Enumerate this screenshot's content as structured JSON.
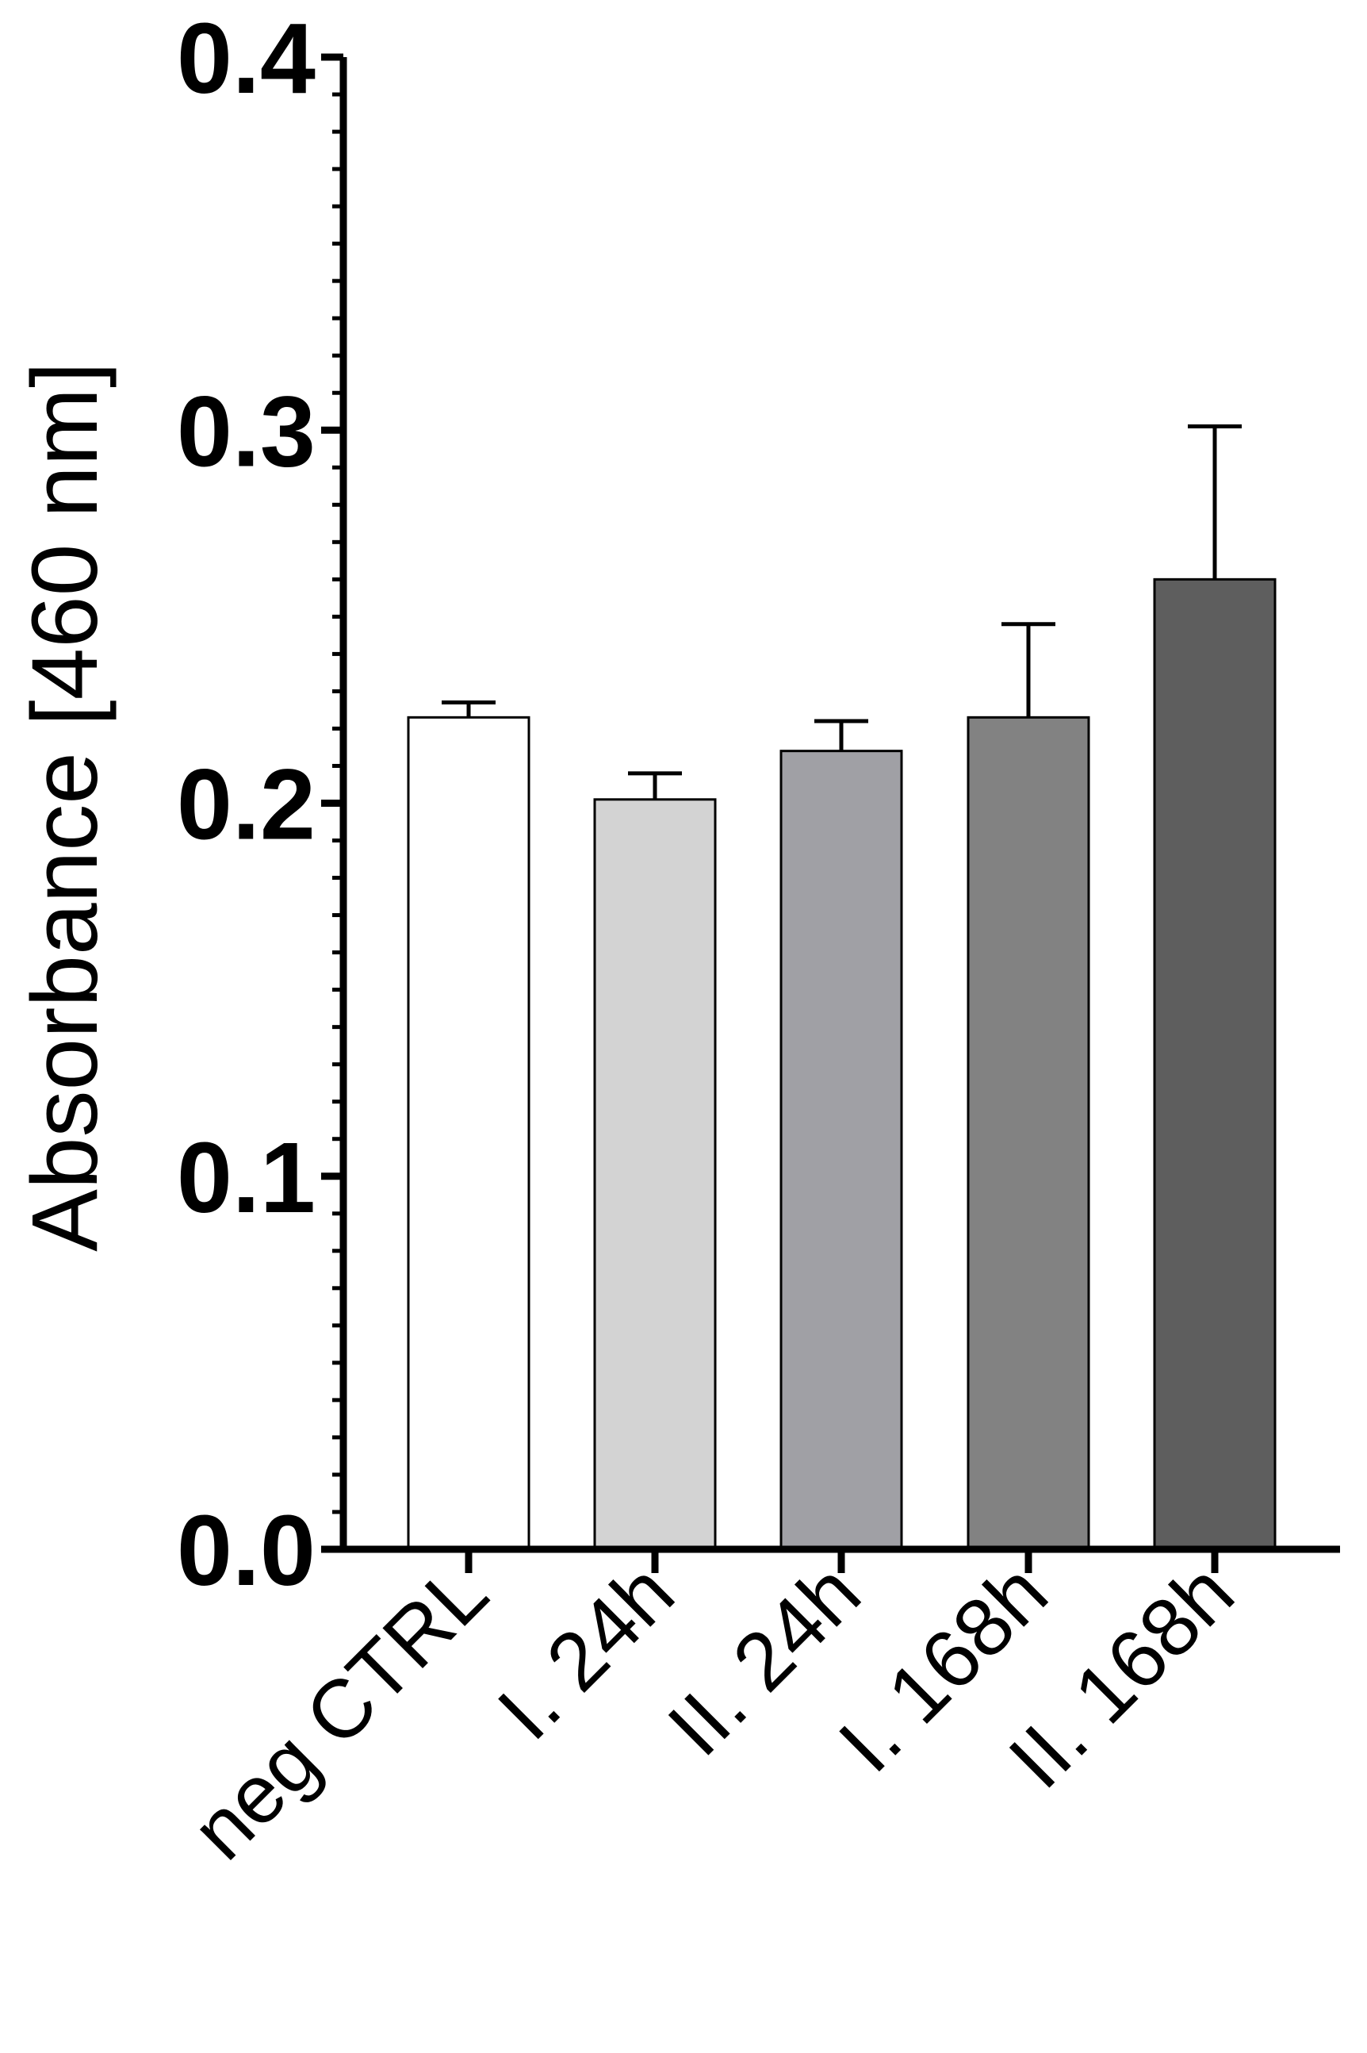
{
  "chart_data": {
    "type": "bar",
    "title": "",
    "xlabel": "",
    "ylabel": "Absorbance [460 nm]",
    "ylim": [
      0,
      0.4
    ],
    "yticks": [
      "0.0",
      "0.1",
      "0.2",
      "0.3",
      "0.4"
    ],
    "minor_ticks_per_major": 10,
    "grid": false,
    "legend": "none",
    "categories": [
      "neg CTRL",
      "I. 24h",
      "II. 24h",
      "I. 168h",
      "II. 168h"
    ],
    "series": [
      {
        "values": [
          0.223,
          0.201,
          0.214,
          0.223,
          0.26
        ],
        "errors": [
          0.004,
          0.007,
          0.008,
          0.025,
          0.041
        ],
        "colors": [
          "#ffffff",
          "#d3d3d3",
          "#a0a0a5",
          "#828282",
          "#5e5e5e"
        ]
      }
    ]
  }
}
